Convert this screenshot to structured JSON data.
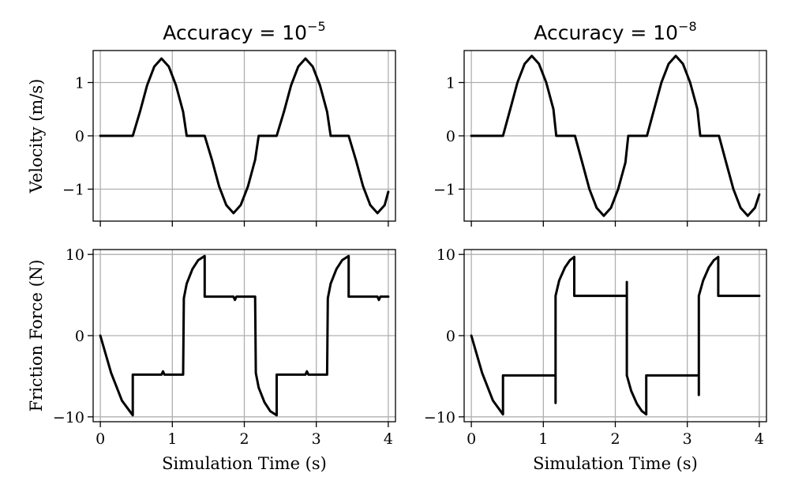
{
  "chart_data": [
    {
      "type": "line",
      "title": "Accuracy = 10",
      "title_exponent": "−5",
      "xlabel": "",
      "ylabel": "Velocity (m/s)",
      "xlim": [
        -0.1,
        4.1
      ],
      "ylim": [
        -1.6,
        1.6
      ],
      "xticks": [
        0,
        1,
        2,
        3,
        4
      ],
      "yticks": [
        -1,
        0,
        1
      ],
      "ytick_labels": [
        "−1",
        "0",
        "1"
      ],
      "grid": true,
      "series": [
        {
          "x": [
            0.0,
            0.45,
            0.55,
            0.65,
            0.75,
            0.85,
            0.95,
            1.05,
            1.15,
            1.2,
            1.45,
            1.55,
            1.65,
            1.75,
            1.85,
            1.95,
            2.05,
            2.15,
            2.2,
            2.45,
            2.55,
            2.65,
            2.75,
            2.85,
            2.95,
            3.05,
            3.15,
            3.2,
            3.45,
            3.55,
            3.65,
            3.75,
            3.85,
            3.95,
            4.0
          ],
          "y": [
            0,
            0,
            0.45,
            0.95,
            1.3,
            1.45,
            1.3,
            0.95,
            0.45,
            0,
            0,
            -0.45,
            -0.95,
            -1.3,
            -1.45,
            -1.3,
            -0.95,
            -0.45,
            0,
            0,
            0.45,
            0.95,
            1.3,
            1.45,
            1.3,
            0.95,
            0.45,
            0,
            0,
            -0.45,
            -0.95,
            -1.3,
            -1.45,
            -1.3,
            -1.05
          ]
        }
      ]
    },
    {
      "type": "line",
      "title": "Accuracy = 10",
      "title_exponent": "−8",
      "xlabel": "",
      "ylabel": "",
      "xlim": [
        -0.1,
        4.1
      ],
      "ylim": [
        -1.6,
        1.6
      ],
      "xticks": [
        0,
        1,
        2,
        3,
        4
      ],
      "yticks": [
        -1,
        0,
        1
      ],
      "ytick_labels": [
        "−1",
        "0",
        "1"
      ],
      "grid": true,
      "series": [
        {
          "x": [
            0.0,
            0.44,
            0.54,
            0.64,
            0.74,
            0.84,
            0.94,
            1.04,
            1.14,
            1.18,
            1.44,
            1.54,
            1.64,
            1.74,
            1.84,
            1.94,
            2.04,
            2.14,
            2.18,
            2.44,
            2.54,
            2.64,
            2.74,
            2.84,
            2.94,
            3.04,
            3.14,
            3.18,
            3.44,
            3.54,
            3.64,
            3.74,
            3.84,
            3.94,
            4.0
          ],
          "y": [
            0,
            0,
            0.5,
            1.0,
            1.35,
            1.5,
            1.35,
            1.0,
            0.5,
            0,
            0,
            -0.5,
            -1.0,
            -1.35,
            -1.5,
            -1.35,
            -1.0,
            -0.5,
            0,
            0,
            0.5,
            1.0,
            1.35,
            1.5,
            1.35,
            1.0,
            0.5,
            0,
            0,
            -0.5,
            -1.0,
            -1.35,
            -1.5,
            -1.35,
            -1.1
          ]
        }
      ]
    },
    {
      "type": "line",
      "title": "",
      "xlabel": "Simulation Time (s)",
      "ylabel": "Friction Force (N)",
      "xlim": [
        -0.1,
        4.1
      ],
      "ylim": [
        -10.6,
        10.6
      ],
      "xticks": [
        0,
        1,
        2,
        3,
        4
      ],
      "yticks": [
        -10,
        0,
        10
      ],
      "ytick_labels": [
        "−10",
        "0",
        "10"
      ],
      "grid": true,
      "series": [
        {
          "x": [
            0.0,
            0.15,
            0.3,
            0.45,
            0.45,
            0.85,
            0.87,
            0.89,
            1.15,
            1.16,
            1.2,
            1.28,
            1.36,
            1.45,
            1.45,
            1.85,
            1.87,
            1.89,
            2.15,
            2.16,
            2.2,
            2.28,
            2.36,
            2.45,
            2.45,
            2.85,
            2.87,
            2.89,
            3.15,
            3.16,
            3.2,
            3.28,
            3.36,
            3.45,
            3.45,
            3.85,
            3.87,
            3.89,
            4.0
          ],
          "y": [
            0,
            -4.6,
            -8.0,
            -9.8,
            -4.8,
            -4.8,
            -4.4,
            -4.8,
            -4.8,
            4.6,
            6.4,
            8.2,
            9.3,
            9.8,
            4.8,
            4.8,
            4.4,
            4.8,
            4.8,
            -4.6,
            -6.4,
            -8.2,
            -9.3,
            -9.8,
            -4.8,
            -4.8,
            -4.4,
            -4.8,
            -4.8,
            4.6,
            6.4,
            8.2,
            9.3,
            9.8,
            4.8,
            4.8,
            4.4,
            4.8,
            4.8
          ]
        }
      ]
    },
    {
      "type": "line",
      "title": "",
      "xlabel": "Simulation Time (s)",
      "ylabel": "",
      "xlim": [
        -0.1,
        4.1
      ],
      "ylim": [
        -10.6,
        10.6
      ],
      "xticks": [
        0,
        1,
        2,
        3,
        4
      ],
      "yticks": [
        -10,
        0,
        10
      ],
      "ytick_labels": [
        "−10",
        "0",
        "10"
      ],
      "grid": true,
      "series": [
        {
          "x": [
            0.0,
            0.15,
            0.3,
            0.44,
            0.44,
            1.17,
            1.17,
            1.17,
            1.22,
            1.3,
            1.37,
            1.43,
            1.43,
            2.16,
            2.16,
            2.16,
            2.22,
            2.3,
            2.37,
            2.43,
            2.43,
            3.16,
            3.16,
            3.16,
            3.22,
            3.3,
            3.37,
            3.43,
            3.43,
            4.0
          ],
          "y": [
            0,
            -4.6,
            -8.0,
            -9.7,
            -4.9,
            -4.9,
            -8.3,
            4.9,
            6.8,
            8.4,
            9.3,
            9.7,
            4.9,
            4.9,
            6.6,
            -4.9,
            -6.8,
            -8.4,
            -9.3,
            -9.7,
            -4.9,
            -4.9,
            -7.3,
            4.9,
            6.8,
            8.4,
            9.3,
            9.7,
            4.9,
            4.9
          ]
        }
      ]
    }
  ]
}
